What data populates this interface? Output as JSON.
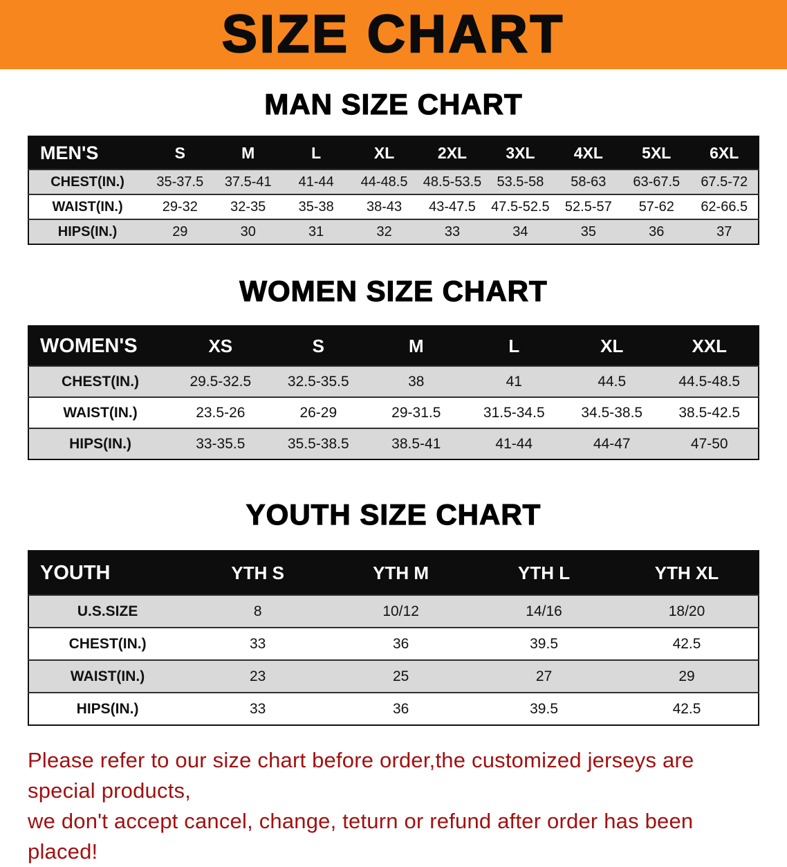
{
  "banner": {
    "title": "SIZE CHART",
    "bg_color": "#f6861d"
  },
  "men": {
    "heading": "MAN SIZE CHART",
    "table": {
      "header": [
        "MEN'S",
        "S",
        "M",
        "L",
        "XL",
        "2XL",
        "3XL",
        "4XL",
        "5XL",
        "6XL"
      ],
      "rows": [
        [
          "CHEST(IN.)",
          "35-37.5",
          "37.5-41",
          "41-44",
          "44-48.5",
          "48.5-53.5",
          "53.5-58",
          "58-63",
          "63-67.5",
          "67.5-72"
        ],
        [
          "WAIST(IN.)",
          "29-32",
          "32-35",
          "35-38",
          "38-43",
          "43-47.5",
          "47.5-52.5",
          "52.5-57",
          "57-62",
          "62-66.5"
        ],
        [
          "HIPS(IN.)",
          "29",
          "30",
          "31",
          "32",
          "33",
          "34",
          "35",
          "36",
          "37"
        ]
      ]
    }
  },
  "women": {
    "heading": "WOMEN SIZE CHART",
    "table": {
      "header": [
        "WOMEN'S",
        "XS",
        "S",
        "M",
        "L",
        "XL",
        "XXL"
      ],
      "rows": [
        [
          "CHEST(IN.)",
          "29.5-32.5",
          "32.5-35.5",
          "38",
          "41",
          "44.5",
          "44.5-48.5"
        ],
        [
          "WAIST(IN.)",
          "23.5-26",
          "26-29",
          "29-31.5",
          "31.5-34.5",
          "34.5-38.5",
          "38.5-42.5"
        ],
        [
          "HIPS(IN.)",
          "33-35.5",
          "35.5-38.5",
          "38.5-41",
          "41-44",
          "44-47",
          "47-50"
        ]
      ]
    }
  },
  "youth": {
    "heading": "YOUTH SIZE CHART",
    "table": {
      "header": [
        "YOUTH",
        "YTH S",
        "YTH M",
        "YTH L",
        "YTH XL"
      ],
      "rows": [
        [
          "U.S.SIZE",
          "8",
          "10/12",
          "14/16",
          "18/20"
        ],
        [
          "CHEST(IN.)",
          "33",
          "36",
          "39.5",
          "42.5"
        ],
        [
          "WAIST(IN.)",
          "23",
          "25",
          "27",
          "29"
        ],
        [
          "HIPS(IN.)",
          "33",
          "36",
          "39.5",
          "42.5"
        ]
      ]
    }
  },
  "disclaimer": {
    "line1": "Please refer to our size chart before order,the customized jerseys are special products,",
    "line2": "we don't accept cancel, change, teturn or refund after order has been placed!",
    "color": "#a31010"
  }
}
